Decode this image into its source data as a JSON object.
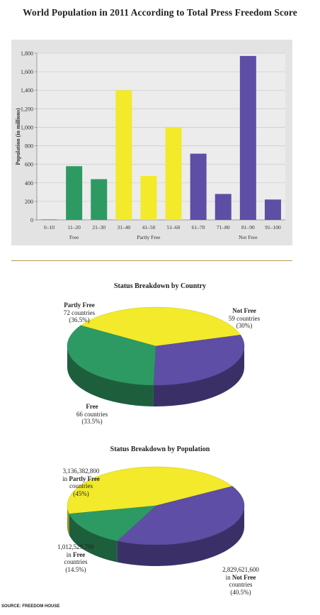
{
  "title": "World Population in 2011 According to Total Press Freedom Score",
  "colors": {
    "free": "#2e9a63",
    "partly_free": "#f2ea2a",
    "not_free": "#5e4ea6"
  },
  "chart_data": [
    {
      "type": "bar",
      "ylabel": "Population (in millions)",
      "ylim": [
        0,
        1800
      ],
      "yticks": [
        "0",
        "200",
        "400",
        "600",
        "800",
        "1,000",
        "1,200",
        "1,400",
        "1,600",
        "1,800"
      ],
      "categories": [
        "0–10",
        "11–20",
        "21–30",
        "31–40",
        "41–50",
        "51–60",
        "61–70",
        "71–80",
        "81–90",
        "91–100"
      ],
      "values": [
        5,
        580,
        440,
        1400,
        475,
        1000,
        715,
        280,
        1770,
        220
      ],
      "bar_groups": [
        "free",
        "free",
        "free",
        "partly_free",
        "partly_free",
        "partly_free",
        "not_free",
        "not_free",
        "not_free",
        "not_free"
      ],
      "group_labels": [
        {
          "label": "Free",
          "under": "11–20"
        },
        {
          "label": "Partly Free",
          "under": "41–50"
        },
        {
          "label": "Not Free",
          "under": "81–90"
        }
      ],
      "grid": true
    },
    {
      "type": "pie",
      "title": "Status Breakdown by Country",
      "slices": [
        {
          "name": "Partly Free",
          "group": "partly_free",
          "value": 36.5,
          "lines": [
            "72 countries",
            "(36.5%)"
          ]
        },
        {
          "name": "Not Free",
          "group": "not_free",
          "value": 30,
          "lines": [
            "59 countries",
            "(30%)"
          ]
        },
        {
          "name": "Free",
          "group": "free",
          "value": 33.5,
          "lines": [
            "66 countries",
            "(33.5%)"
          ]
        }
      ]
    },
    {
      "type": "pie",
      "title": "Status Breakdown by Population",
      "slices": [
        {
          "name": "Partly Free",
          "group": "partly_free",
          "value": 45,
          "lines": [
            "3,136,382,800",
            "in Partly Free",
            "countries",
            "(45%)"
          ]
        },
        {
          "name": "Not Free",
          "group": "not_free",
          "value": 40.5,
          "lines": [
            "2,829,621,600",
            "in Not Free",
            "countries",
            "(40.5%)"
          ]
        },
        {
          "name": "Free",
          "group": "free",
          "value": 14.5,
          "lines": [
            "1,012,529,700",
            "in Free",
            "countries",
            "(14.5%)"
          ]
        }
      ]
    }
  ],
  "source": "SOURCE: FREEDOM HOUSE"
}
